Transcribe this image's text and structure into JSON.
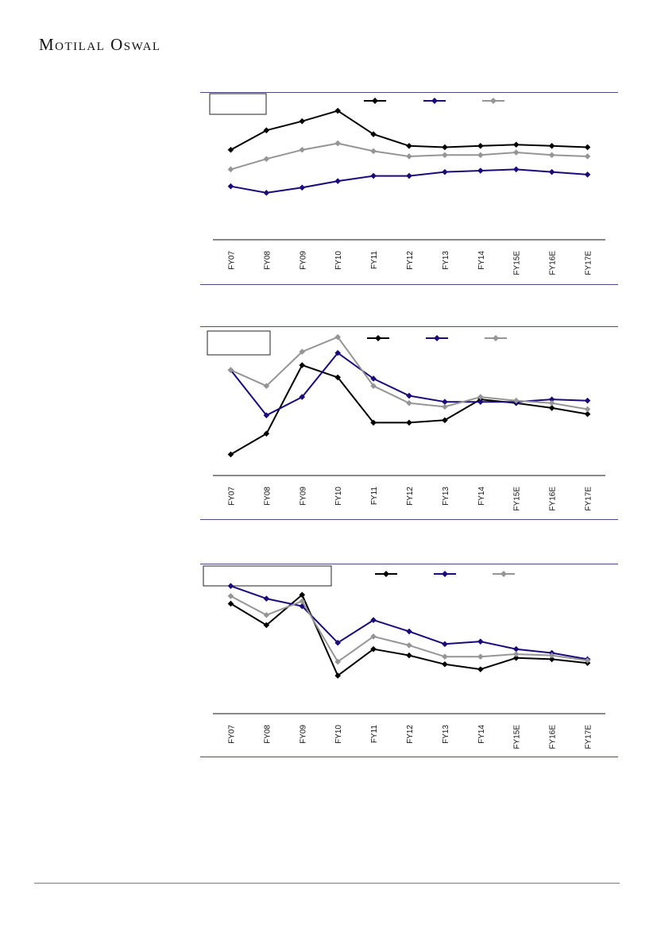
{
  "brand": {
    "name": "Motilal Oswal"
  },
  "legend_colors": {
    "series1": "#000000",
    "series2": "#1a0a7a",
    "series3": "#959595"
  },
  "chart_data": [
    {
      "type": "line",
      "title": "",
      "xlabel": "",
      "ylabel": "",
      "categories": [
        "FY07",
        "FY08",
        "FY09",
        "FY10",
        "FY11",
        "FY12",
        "FY13",
        "FY14",
        "FY15E",
        "FY16E",
        "FY17E"
      ],
      "ylim": [
        0,
        100
      ],
      "grid": false,
      "legend": "top",
      "series": [
        {
          "color": "#000000",
          "values": [
            66,
            81,
            88,
            96,
            78,
            69,
            68,
            69,
            70,
            69,
            68
          ]
        },
        {
          "color": "#1a0a7a",
          "values": [
            38,
            33,
            37,
            42,
            46,
            46,
            49,
            50,
            51,
            49,
            47
          ]
        },
        {
          "color": "#959595",
          "values": [
            51,
            59,
            66,
            71,
            65,
            61,
            62,
            62,
            64,
            62,
            61
          ]
        }
      ]
    },
    {
      "type": "line",
      "title": "",
      "xlabel": "",
      "ylabel": "",
      "categories": [
        "FY07",
        "FY08",
        "FY09",
        "FY10",
        "FY11",
        "FY12",
        "FY13",
        "FY14",
        "FY15E",
        "FY16E",
        "FY17E"
      ],
      "ylim": [
        0,
        100
      ],
      "grid": false,
      "legend": "top",
      "series": [
        {
          "color": "#000000",
          "values": [
            14,
            31,
            87,
            77,
            40,
            40,
            42,
            59,
            56,
            52,
            47
          ]
        },
        {
          "color": "#1a0a7a",
          "values": [
            83,
            46,
            61,
            97,
            76,
            62,
            57,
            57,
            57,
            59,
            58
          ]
        },
        {
          "color": "#959595",
          "values": [
            83,
            70,
            98,
            110,
            70,
            56,
            53,
            61,
            58,
            56,
            51
          ]
        }
      ]
    },
    {
      "type": "line",
      "title": "",
      "xlabel": "",
      "ylabel": "",
      "categories": [
        "FY07",
        "FY08",
        "FY09",
        "FY10",
        "FY11",
        "FY12",
        "FY13",
        "FY14",
        "FY15E",
        "FY16E",
        "FY17E"
      ],
      "ylim": [
        0,
        100
      ],
      "grid": false,
      "legend": "top",
      "series": [
        {
          "color": "#000000",
          "values": [
            84,
            67,
            91,
            27,
            48,
            43,
            36,
            32,
            41,
            40,
            37
          ]
        },
        {
          "color": "#1a0a7a",
          "values": [
            98,
            88,
            82,
            53,
            71,
            62,
            52,
            54,
            48,
            45,
            40
          ]
        },
        {
          "color": "#959595",
          "values": [
            90,
            75,
            86,
            38,
            58,
            51,
            42,
            42,
            44,
            43,
            39
          ]
        }
      ]
    }
  ]
}
